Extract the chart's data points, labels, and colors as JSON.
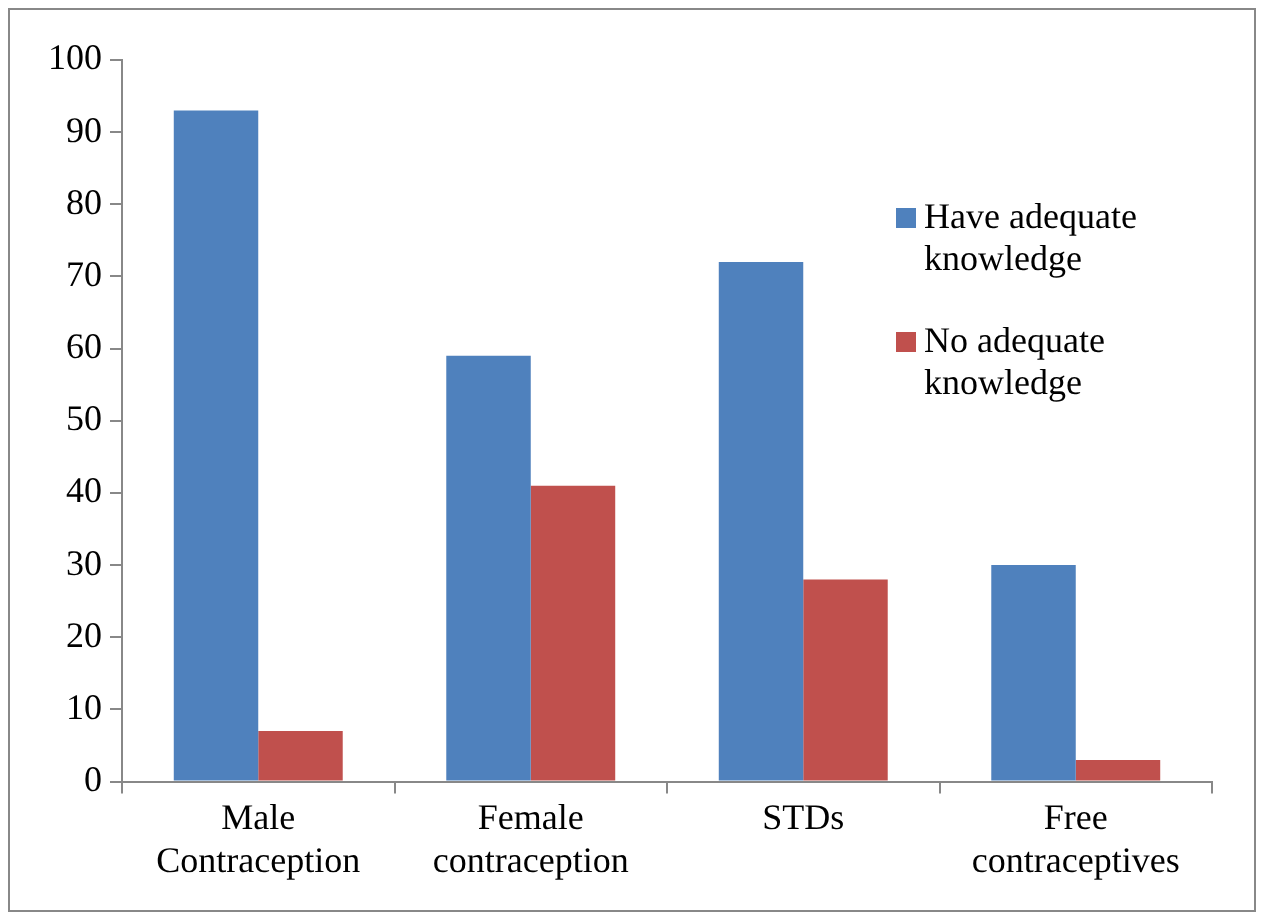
{
  "chart_data": {
    "type": "bar",
    "categories": [
      "Male Contraception",
      "Female contraception",
      "STDs",
      "Free contraceptives"
    ],
    "series": [
      {
        "name": "Have adequate knowledge",
        "color": "#4f81bd",
        "values": [
          93,
          59,
          72,
          30
        ]
      },
      {
        "name": "No adequate knowledge",
        "color": "#c0504d",
        "values": [
          7,
          41,
          28,
          3
        ]
      }
    ],
    "ylim": [
      0,
      100
    ],
    "yticks": [
      0,
      10,
      20,
      30,
      40,
      50,
      60,
      70,
      80,
      90,
      100
    ],
    "grid": false,
    "legend": "right"
  }
}
